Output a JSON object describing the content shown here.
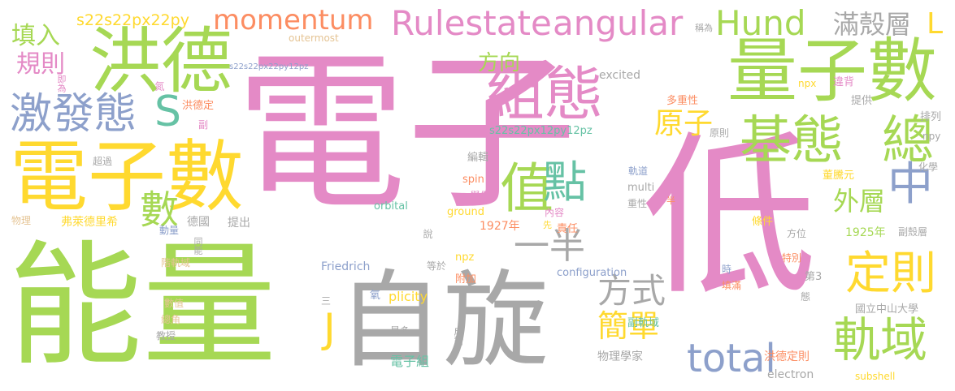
{
  "words": {
    "electron": "電子",
    "low": "低",
    "energy": "能量",
    "spin": "自旋",
    "electron_count": "電子數",
    "quantum_number": "量子數",
    "hund": "洪德",
    "configuration": "組態",
    "ground_state": "基態",
    "excited_state": "激發態",
    "total": "總",
    "orbital": "軌域",
    "rule": "定則",
    "value": "值",
    "point": "點",
    "middle": "中",
    "S": "S",
    "number": "數",
    "outer_shell": "外層",
    "atom": "原子",
    "half": "一半",
    "way": "方式",
    "simple": "簡單",
    "total_en": "total",
    "J": "J",
    "L": "L",
    "momentum": "momentum",
    "rulestate": "Rulestate",
    "angular": "angular",
    "hund_en": "Hund",
    "full_shell": "滿殼層",
    "fill_in": "填入",
    "rules": "規則",
    "s22_1": "s22s22px22py",
    "direction": "方向",
    "outermost": "outermost",
    "s22_2": "s22s22px22py12pz",
    "s22_3": "s22s22px12py12pz",
    "i_e": "即為",
    "nitrogen": "氮",
    "hund_rule_abbr": "洪德定",
    "vice": "副",
    "exceed": "超過",
    "physics": "物理",
    "friedreich": "弗萊德里希",
    "germany": "德國",
    "propose": "提出",
    "momentum_zh": "動量",
    "same_energy": "同能",
    "energy_level": "階軌域",
    "value_zh": "數值",
    "total_angle": "總角",
    "professor": "教授",
    "friedrich": "Friedrich",
    "three": "三",
    "electron_group": "電子組",
    "most": "最多",
    "oxygen": "氧",
    "pair": "成對",
    "plicity": "plicity",
    "attach": "附加",
    "equal": "等於",
    "npz": "npz",
    "configuration_en": "configuration",
    "say": "說",
    "year_1927": "1927年",
    "first": "先",
    "responsibility": "責任",
    "content": "內容",
    "example": "舉例",
    "ground": "ground",
    "orbital_en": "orbital",
    "spin_en": "spin",
    "edit": "編輯",
    "orbit": "軌道",
    "multi": "multi",
    "multiplicity": "重性",
    "half_zh": "半",
    "called": "稱為",
    "excited": "excited",
    "multiplicity_full": "多重性",
    "violate": "違背",
    "provide": "提供",
    "principle": "原則",
    "npx": "npx",
    "npy": "npy",
    "arrange": "排列",
    "chemistry": "化學",
    "dong": "董騰元",
    "orientation": "方位",
    "condition": "條件",
    "year_1925": "1925年",
    "subshell_zh": "副殼層",
    "special": "特別",
    "when": "時",
    "third": "第3",
    "fill_full": "填滿",
    "state": "態",
    "sub_orbital": "副軌域",
    "nsysu": "國立中山大學",
    "physicist": "物理學家",
    "hund_rule": "洪德定則",
    "electron_en": "electron",
    "subshell": "subshell"
  }
}
